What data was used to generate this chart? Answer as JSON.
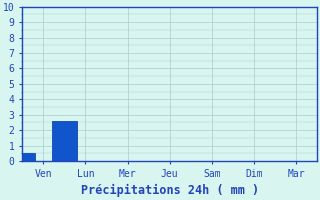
{
  "days": [
    "Ven",
    "Lun",
    "Mer",
    "Jeu",
    "Sam",
    "Dim",
    "Mar"
  ],
  "values": [
    0.5,
    2.6,
    0.0,
    0.0,
    0.0,
    0.0,
    0.0
  ],
  "bar_color": "#1155cc",
  "bar_edge_color": "#0033aa",
  "background_color": "#d8f5f0",
  "grid_color": "#aacccc",
  "axis_color": "#2244bb",
  "text_color": "#2244bb",
  "xlabel": "Précipitations 24h ( mm )",
  "ylim": [
    0,
    10
  ],
  "yticks": [
    0,
    1,
    2,
    3,
    4,
    5,
    6,
    7,
    8,
    9,
    10
  ],
  "xlabel_fontsize": 8.5,
  "tick_fontsize": 7
}
